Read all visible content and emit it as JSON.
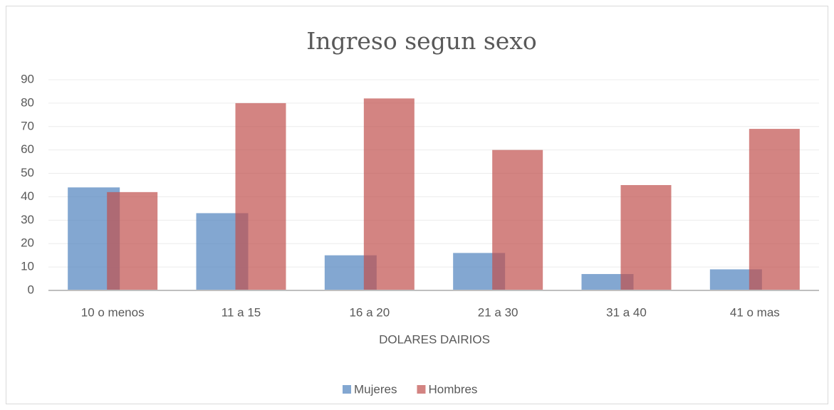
{
  "chart_data": {
    "type": "bar",
    "title": "Ingreso segun sexo",
    "x_label": "DOLARES DAIRIOS",
    "categories": [
      "10 o menos",
      "11 a 15",
      "16 a 20",
      "21 a 30",
      "31 a 40",
      "41 o mas"
    ],
    "series": [
      {
        "name": "Mujeres",
        "color": "#4f81bd",
        "values": [
          44,
          33,
          15,
          16,
          7,
          9
        ]
      },
      {
        "name": "Hombres",
        "color": "#c0504d",
        "values": [
          42,
          80,
          82,
          60,
          45,
          69
        ]
      }
    ],
    "ylim": [
      0,
      90
    ],
    "yticks": [
      0,
      10,
      20,
      30,
      40,
      50,
      60,
      70,
      80,
      90
    ],
    "grid": true,
    "legend": "bottom"
  }
}
